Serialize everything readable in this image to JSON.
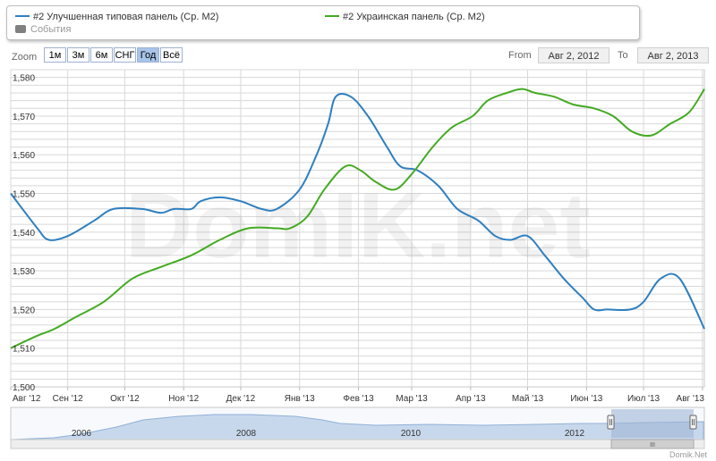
{
  "legend": {
    "items": [
      {
        "label": "#2 Улучшенная типовая панель (Ср. М2)",
        "color": "#2f7fbf"
      },
      {
        "label": "#2 Украинская панель (Ср. М2)",
        "color": "#44aa22"
      },
      {
        "label": "События",
        "color": "#808080"
      }
    ]
  },
  "toolbar": {
    "zoom_label": "Zoom",
    "zoom_buttons": [
      "1м",
      "3м",
      "6м",
      "СНГ",
      "Год",
      "Всё"
    ],
    "active_zoom": "Год",
    "from_label": "From",
    "from_value": "Авг 2, 2012",
    "to_label": "To",
    "to_value": "Авг 2, 2013"
  },
  "watermark": "DomIK.net",
  "credit": "Domik.Net",
  "navigator": {
    "year_labels": [
      "2006",
      "2008",
      "2010",
      "2012"
    ],
    "scrollbar_glyph": "III"
  },
  "colors": {
    "series1": "#2f7fbf",
    "series2": "#44aa22",
    "grid": "#d8d8d8",
    "navigator_fill": "#c8d8ec",
    "navigator_selection": "#9fb6d6"
  },
  "chart_data": {
    "type": "line",
    "x_ticks": [
      "Авг '12",
      "Сен '12",
      "Окт '12",
      "Ноя '12",
      "Дек '12",
      "Янв '13",
      "Фев '13",
      "Мар '13",
      "Апр '13",
      "Май '13",
      "Июн '13",
      "Июл '13",
      "Авг '13"
    ],
    "y_ticks": [
      "1,500",
      "1,510",
      "1,520",
      "1,530",
      "1,540",
      "1,550",
      "1,560",
      "1,570",
      "1,580"
    ],
    "ylim": [
      1500,
      1582
    ],
    "xlim": [
      "2012-08-02",
      "2013-08-02"
    ],
    "series": [
      {
        "name": "#2 Улучшенная типовая панель (Ср. М2)",
        "x": [
          "2012-08-02",
          "2012-08-16",
          "2012-08-22",
          "2012-09-01",
          "2012-09-15",
          "2012-09-25",
          "2012-10-10",
          "2012-10-20",
          "2012-10-27",
          "2012-11-05",
          "2012-11-10",
          "2012-11-20",
          "2012-12-01",
          "2012-12-12",
          "2012-12-20",
          "2013-01-01",
          "2013-01-10",
          "2013-01-16",
          "2013-01-20",
          "2013-01-28",
          "2013-02-06",
          "2013-02-16",
          "2013-02-23",
          "2013-03-04",
          "2013-03-15",
          "2013-03-25",
          "2013-04-05",
          "2013-04-14",
          "2013-04-22",
          "2013-05-01",
          "2013-05-10",
          "2013-05-20",
          "2013-05-30",
          "2013-06-05",
          "2013-06-12",
          "2013-06-24",
          "2013-07-01",
          "2013-07-10",
          "2013-07-20",
          "2013-08-02"
        ],
        "y": [
          1550,
          1541,
          1538,
          1539,
          1543,
          1546,
          1546,
          1545,
          1546,
          1546,
          1548,
          1549,
          1548,
          1546,
          1546,
          1551,
          1560,
          1568,
          1575,
          1575,
          1570,
          1562,
          1557,
          1556,
          1552,
          1546,
          1543,
          1539,
          1538,
          1539,
          1534,
          1528,
          1523,
          1520,
          1520,
          1520,
          1522,
          1528,
          1528,
          1515
        ]
      },
      {
        "name": "#2 Украинская панель (Ср. М2)",
        "x": [
          "2012-08-02",
          "2012-08-15",
          "2012-08-25",
          "2012-09-05",
          "2012-09-20",
          "2012-10-05",
          "2012-10-20",
          "2012-11-05",
          "2012-11-20",
          "2012-12-05",
          "2012-12-20",
          "2012-12-27",
          "2013-01-05",
          "2013-01-14",
          "2013-01-25",
          "2013-02-02",
          "2013-02-10",
          "2013-02-20",
          "2013-03-01",
          "2013-03-12",
          "2013-03-22",
          "2013-04-02",
          "2013-04-10",
          "2013-04-20",
          "2013-04-28",
          "2013-05-05",
          "2013-05-15",
          "2013-05-25",
          "2013-06-05",
          "2013-06-15",
          "2013-06-25",
          "2013-07-05",
          "2013-07-15",
          "2013-07-25",
          "2013-08-02"
        ],
        "y": [
          1510,
          1513,
          1515,
          1518,
          1522,
          1528,
          1531,
          1534,
          1538,
          1541,
          1541,
          1541,
          1544,
          1551,
          1557,
          1556,
          1553,
          1551,
          1555,
          1562,
          1567,
          1570,
          1574,
          1576,
          1577,
          1576,
          1575,
          1573,
          1572,
          1570,
          1566,
          1565,
          1568,
          1571,
          1577
        ]
      }
    ],
    "grid": true,
    "legend_position": "top"
  }
}
